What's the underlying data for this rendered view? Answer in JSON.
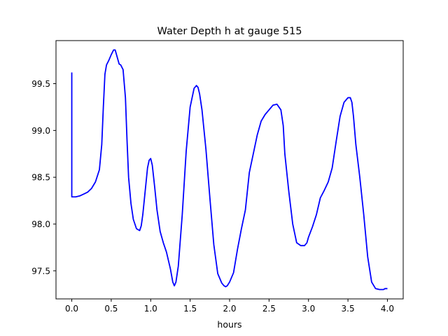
{
  "chart_data": {
    "type": "line",
    "title": "Water Depth h at gauge 515",
    "xlabel": "hours",
    "ylabel": "",
    "xlim": [
      -0.2,
      4.2
    ],
    "ylim": [
      97.2,
      99.96
    ],
    "xticks": [
      0.0,
      0.5,
      1.0,
      1.5,
      2.0,
      2.5,
      3.0,
      3.5,
      4.0
    ],
    "xtick_labels": [
      "0.0",
      "0.5",
      "1.0",
      "1.5",
      "2.0",
      "2.5",
      "3.0",
      "3.5",
      "4.0"
    ],
    "yticks": [
      97.5,
      98.0,
      98.5,
      99.0,
      99.5
    ],
    "ytick_labels": [
      "97.5",
      "98.0",
      "98.5",
      "99.0",
      "99.5"
    ],
    "grid": false,
    "line_color": "#0000ff",
    "series": [
      {
        "name": "",
        "x": [
          0.0,
          0.0,
          0.05,
          0.1,
          0.15,
          0.2,
          0.25,
          0.3,
          0.35,
          0.38,
          0.4,
          0.42,
          0.44,
          0.47,
          0.5,
          0.53,
          0.55,
          0.57,
          0.6,
          0.62,
          0.65,
          0.68,
          0.7,
          0.72,
          0.75,
          0.78,
          0.82,
          0.86,
          0.88,
          0.9,
          0.93,
          0.96,
          0.98,
          1.0,
          1.02,
          1.05,
          1.08,
          1.12,
          1.16,
          1.2,
          1.25,
          1.28,
          1.3,
          1.32,
          1.35,
          1.4,
          1.45,
          1.5,
          1.55,
          1.58,
          1.6,
          1.62,
          1.65,
          1.7,
          1.75,
          1.8,
          1.85,
          1.9,
          1.93,
          1.95,
          1.97,
          2.0,
          2.05,
          2.1,
          2.15,
          2.2,
          2.25,
          2.3,
          2.35,
          2.4,
          2.45,
          2.5,
          2.55,
          2.6,
          2.65,
          2.68,
          2.7,
          2.75,
          2.8,
          2.85,
          2.9,
          2.95,
          2.98,
          3.0,
          3.05,
          3.1,
          3.15,
          3.2,
          3.25,
          3.3,
          3.35,
          3.4,
          3.45,
          3.5,
          3.53,
          3.55,
          3.57,
          3.6,
          3.65,
          3.7,
          3.75,
          3.8,
          3.85,
          3.9,
          3.93,
          3.95,
          3.97,
          4.0
        ],
        "y": [
          99.62,
          98.29,
          98.29,
          98.3,
          98.32,
          98.34,
          98.38,
          98.45,
          98.58,
          98.85,
          99.25,
          99.6,
          99.7,
          99.75,
          99.81,
          99.86,
          99.86,
          99.8,
          99.71,
          99.7,
          99.65,
          99.35,
          98.9,
          98.5,
          98.22,
          98.05,
          97.95,
          97.93,
          97.98,
          98.1,
          98.35,
          98.6,
          98.68,
          98.7,
          98.63,
          98.4,
          98.15,
          97.92,
          97.8,
          97.7,
          97.52,
          97.38,
          97.34,
          97.38,
          97.55,
          98.1,
          98.78,
          99.25,
          99.45,
          99.48,
          99.46,
          99.39,
          99.22,
          98.8,
          98.28,
          97.78,
          97.47,
          97.37,
          97.34,
          97.33,
          97.34,
          97.38,
          97.48,
          97.73,
          97.95,
          98.15,
          98.55,
          98.75,
          98.95,
          99.1,
          99.17,
          99.22,
          99.27,
          99.28,
          99.22,
          99.05,
          98.75,
          98.35,
          98.0,
          97.8,
          97.77,
          97.77,
          97.8,
          97.86,
          97.97,
          98.1,
          98.28,
          98.36,
          98.45,
          98.6,
          98.88,
          99.15,
          99.3,
          99.35,
          99.35,
          99.3,
          99.15,
          98.85,
          98.5,
          98.1,
          97.65,
          97.38,
          97.31,
          97.3,
          97.3,
          97.3,
          97.31,
          97.31
        ]
      }
    ]
  }
}
